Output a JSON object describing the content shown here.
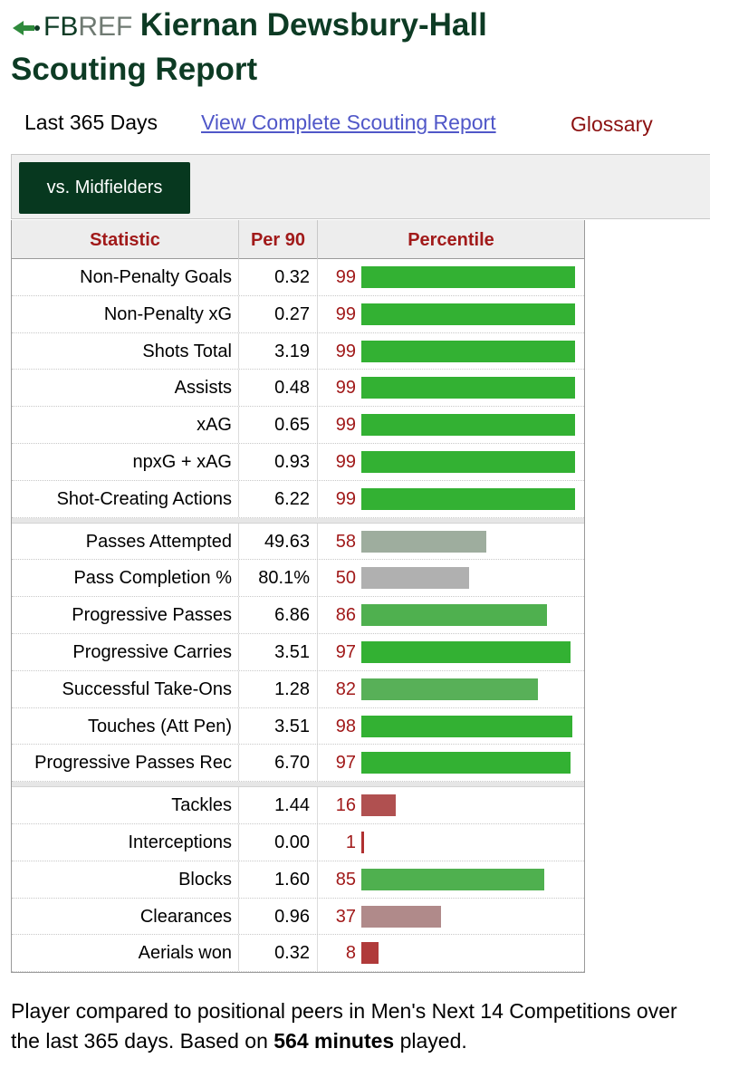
{
  "header": {
    "brand_fb": "FB",
    "brand_ref": "REF",
    "title_line1": "Kiernan Dewsbury-Hall",
    "title_line2": "Scouting Report"
  },
  "nav": {
    "period": "Last 365 Days",
    "full_report": "View Complete Scouting Report",
    "glossary": "Glossary"
  },
  "filter": {
    "active_tab": "vs. Midfielders"
  },
  "table": {
    "headers": {
      "statistic": "Statistic",
      "per90": "Per 90",
      "percentile": "Percentile"
    },
    "groups": [
      [
        {
          "stat": "Non-Penalty Goals",
          "per90": "0.32",
          "pct": 99,
          "color": "#33b133"
        },
        {
          "stat": "Non-Penalty xG",
          "per90": "0.27",
          "pct": 99,
          "color": "#33b133"
        },
        {
          "stat": "Shots Total",
          "per90": "3.19",
          "pct": 99,
          "color": "#33b133"
        },
        {
          "stat": "Assists",
          "per90": "0.48",
          "pct": 99,
          "color": "#33b133"
        },
        {
          "stat": "xAG",
          "per90": "0.65",
          "pct": 99,
          "color": "#33b133"
        },
        {
          "stat": "npxG + xAG",
          "per90": "0.93",
          "pct": 99,
          "color": "#33b133"
        },
        {
          "stat": "Shot-Creating Actions",
          "per90": "6.22",
          "pct": 99,
          "color": "#33b133"
        }
      ],
      [
        {
          "stat": "Passes Attempted",
          "per90": "49.63",
          "pct": 58,
          "color": "#9ead9e"
        },
        {
          "stat": "Pass Completion %",
          "per90": "80.1%",
          "pct": 50,
          "color": "#b0b0b0"
        },
        {
          "stat": "Progressive Passes",
          "per90": "6.86",
          "pct": 86,
          "color": "#4fb04f"
        },
        {
          "stat": "Progressive Carries",
          "per90": "3.51",
          "pct": 97,
          "color": "#33b133"
        },
        {
          "stat": "Successful Take-Ons",
          "per90": "1.28",
          "pct": 82,
          "color": "#58b058"
        },
        {
          "stat": "Touches (Att Pen)",
          "per90": "3.51",
          "pct": 98,
          "color": "#33b133"
        },
        {
          "stat": "Progressive Passes Rec",
          "per90": "6.70",
          "pct": 97,
          "color": "#33b133"
        }
      ],
      [
        {
          "stat": "Tackles",
          "per90": "1.44",
          "pct": 16,
          "color": "#b05050"
        },
        {
          "stat": "Interceptions",
          "per90": "0.00",
          "pct": 1,
          "color": "#b03030"
        },
        {
          "stat": "Blocks",
          "per90": "1.60",
          "pct": 85,
          "color": "#4fb04f"
        },
        {
          "stat": "Clearances",
          "per90": "0.96",
          "pct": 37,
          "color": "#b08a8a"
        },
        {
          "stat": "Aerials won",
          "per90": "0.32",
          "pct": 8,
          "color": "#b03a3a"
        }
      ]
    ]
  },
  "note": {
    "text_before": "Player compared to positional peers in Men's Next 14 Competitions over the last 365 days. Based on ",
    "minutes": "564 minutes",
    "text_after": " played."
  }
}
